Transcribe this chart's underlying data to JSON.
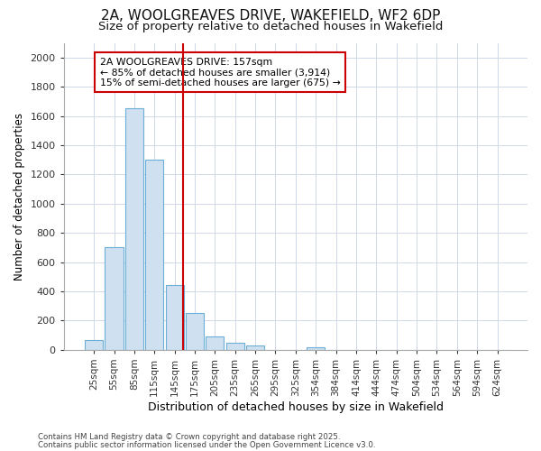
{
  "title_line1": "2A, WOOLGREAVES DRIVE, WAKEFIELD, WF2 6DP",
  "title_line2": "Size of property relative to detached houses in Wakefield",
  "xlabel": "Distribution of detached houses by size in Wakefield",
  "ylabel": "Number of detached properties",
  "categories": [
    "25sqm",
    "55sqm",
    "85sqm",
    "115sqm",
    "145sqm",
    "175sqm",
    "205sqm",
    "235sqm",
    "265sqm",
    "295sqm",
    "325sqm",
    "354sqm",
    "384sqm",
    "414sqm",
    "444sqm",
    "474sqm",
    "504sqm",
    "534sqm",
    "564sqm",
    "594sqm",
    "624sqm"
  ],
  "values": [
    65,
    700,
    1650,
    1300,
    440,
    250,
    90,
    50,
    30,
    0,
    0,
    20,
    0,
    0,
    0,
    0,
    0,
    0,
    0,
    0,
    0
  ],
  "bar_color": "#cfe0f0",
  "bar_edge_color": "#6baed6",
  "vline_color": "#cc0000",
  "annotation_title": "2A WOOLGREAVES DRIVE: 157sqm",
  "annotation_line1": "← 85% of detached houses are smaller (3,914)",
  "annotation_line2": "15% of semi-detached houses are larger (675) →",
  "annotation_box_color": "#cc0000",
  "ylim": [
    0,
    2100
  ],
  "yticks": [
    0,
    200,
    400,
    600,
    800,
    1000,
    1200,
    1400,
    1600,
    1800,
    2000
  ],
  "footer_line1": "Contains HM Land Registry data © Crown copyright and database right 2025.",
  "footer_line2": "Contains public sector information licensed under the Open Government Licence v3.0.",
  "bg_color": "#ffffff",
  "plot_bg_color": "#ffffff",
  "grid_color": "#d0d8e8"
}
